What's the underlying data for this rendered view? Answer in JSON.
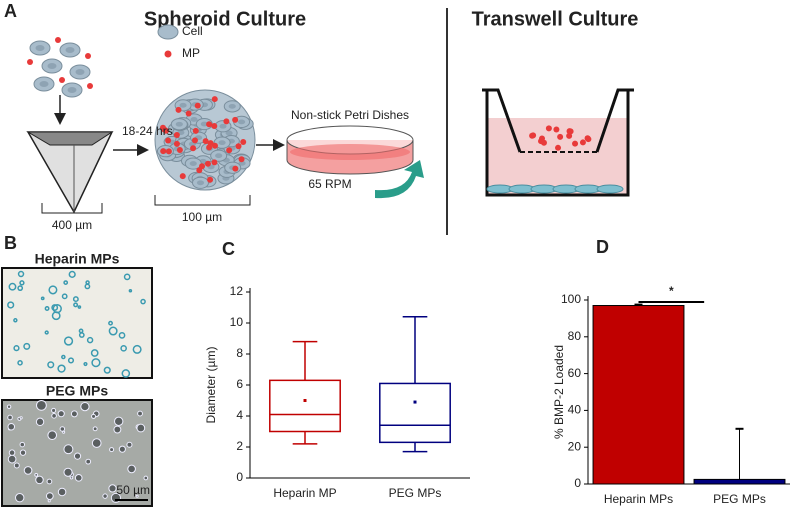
{
  "panel_labels": [
    "A",
    "B",
    "C",
    "D"
  ],
  "spheroid": {
    "title": "Spheroid Culture",
    "legend": [
      "Cell",
      "MP"
    ],
    "time": "18-24 hrs",
    "scale_pyramid": "400 µm",
    "scale_spheroid": "100 µm",
    "dish": "Non-stick Petri Dishes",
    "rpm": "65 RPM"
  },
  "transwell": {
    "title": "Transwell Culture"
  },
  "micrographs": {
    "top": "Heparin MPs",
    "bottom": "PEG MPs",
    "scale": "50 µm"
  },
  "chart_data": [
    {
      "type": "box",
      "ylabel": "Diameter (µm)",
      "categories": [
        "Heparin MP",
        "PEG MPs"
      ],
      "colors": [
        "#c00000",
        "#00007f"
      ],
      "low": [
        2.2,
        1.7
      ],
      "q1": [
        3.0,
        2.3
      ],
      "median": [
        4.1,
        3.4
      ],
      "q3": [
        6.3,
        6.1
      ],
      "high": [
        8.8,
        10.4
      ],
      "mean": [
        5.0,
        4.9
      ],
      "ylim": [
        0,
        12
      ],
      "yticks": [
        0,
        2,
        4,
        6,
        8,
        10,
        12
      ]
    },
    {
      "type": "bar",
      "ylabel": "% BMP-2 Loaded",
      "categories": [
        "Heparin MPs",
        "PEG MPs"
      ],
      "colors": [
        "#c00000",
        "#00007f"
      ],
      "values": [
        97,
        2.5
      ],
      "errors": [
        0.5,
        27.5
      ],
      "annotation": "*",
      "ylim": [
        0,
        100
      ],
      "yticks": [
        0,
        20,
        40,
        60,
        80,
        100
      ]
    }
  ]
}
